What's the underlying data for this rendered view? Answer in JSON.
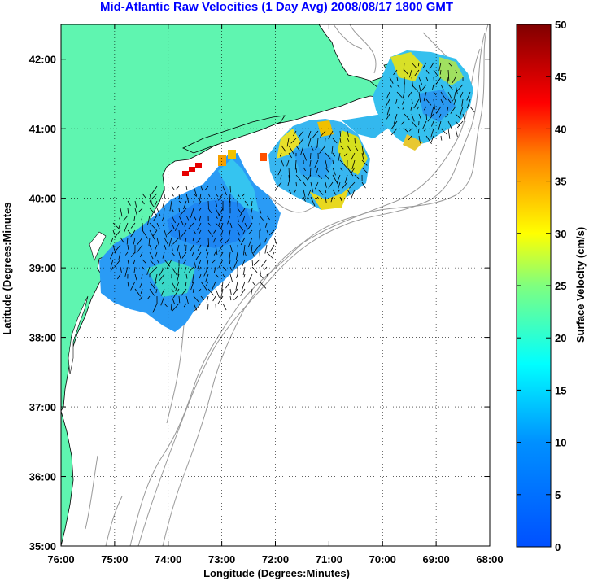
{
  "title": "Mid-Atlantic Raw Velocities (1 Day Avg) 2008/08/17 1800 GMT",
  "map": {
    "xlabel": "Longitude (Degrees:Minutes)",
    "ylabel": "Latitude (Degrees:Minutes",
    "x_ticks": [
      "76:00",
      "75:00",
      "74:00",
      "73:00",
      "72:00",
      "71:00",
      "70:00",
      "69:00",
      "68:00"
    ],
    "y_ticks": [
      "42:00",
      "41:00",
      "40:00",
      "39:00",
      "38:00",
      "37:00",
      "36:00",
      "35:00"
    ],
    "lon_range": [
      -76,
      -68
    ],
    "lat_range": [
      35,
      42.5
    ],
    "land_color": "#5ff5b0",
    "grid": "dotted"
  },
  "colorbar": {
    "label": "Surface Velocity (cm/s)",
    "ticks": [
      "0",
      "5",
      "10",
      "15",
      "20",
      "25",
      "30",
      "35",
      "40",
      "45",
      "50"
    ],
    "range": [
      0,
      50
    ],
    "colormap": "jet"
  }
}
